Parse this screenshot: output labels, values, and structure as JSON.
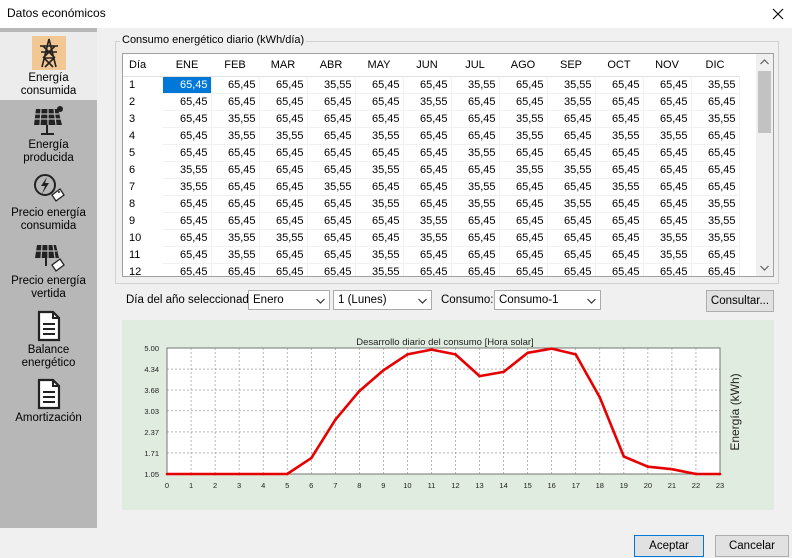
{
  "window": {
    "title": "Datos económicos"
  },
  "sidebar": {
    "items": [
      {
        "label_line1": "Energía",
        "label_line2": "consumida",
        "icon": "power-tower-icon",
        "selected": true
      },
      {
        "label_line1": "Energía",
        "label_line2": "producida",
        "icon": "solar-panel-icon"
      },
      {
        "label_line1": "Precio energía",
        "label_line2": "consumida",
        "icon": "lightning-price-icon"
      },
      {
        "label_line1": "Precio energía",
        "label_line2": "vertida",
        "icon": "solar-price-icon"
      },
      {
        "label_line1": "Balance",
        "label_line2": "energético",
        "icon": "document-icon"
      },
      {
        "label_line1": "Amortización",
        "label_line2": "",
        "icon": "document-icon"
      }
    ]
  },
  "consumo_group": {
    "title": "Consumo energético diario (kWh/día)"
  },
  "table": {
    "columns": [
      "Día",
      "ENE",
      "FEB",
      "MAR",
      "ABR",
      "MAY",
      "JUN",
      "JUL",
      "AGO",
      "SEP",
      "OCT",
      "NOV",
      "DIC"
    ],
    "rows": [
      [
        "1",
        "65,45",
        "65,45",
        "65,45",
        "35,55",
        "65,45",
        "65,45",
        "35,55",
        "65,45",
        "35,55",
        "65,45",
        "65,45",
        "35,55"
      ],
      [
        "2",
        "65,45",
        "65,45",
        "65,45",
        "65,45",
        "65,45",
        "35,55",
        "65,45",
        "65,45",
        "35,55",
        "65,45",
        "65,45",
        "65,45"
      ],
      [
        "3",
        "65,45",
        "35,55",
        "65,45",
        "65,45",
        "65,45",
        "65,45",
        "65,45",
        "35,55",
        "65,45",
        "65,45",
        "65,45",
        "35,55"
      ],
      [
        "4",
        "65,45",
        "35,55",
        "35,55",
        "65,45",
        "35,55",
        "65,45",
        "65,45",
        "35,55",
        "65,45",
        "35,55",
        "35,55",
        "65,45"
      ],
      [
        "5",
        "65,45",
        "65,45",
        "65,45",
        "65,45",
        "65,45",
        "65,45",
        "35,55",
        "65,45",
        "65,45",
        "65,45",
        "65,45",
        "65,45"
      ],
      [
        "6",
        "35,55",
        "65,45",
        "65,45",
        "65,45",
        "35,55",
        "65,45",
        "65,45",
        "35,55",
        "35,55",
        "65,45",
        "65,45",
        "65,45"
      ],
      [
        "7",
        "35,55",
        "65,45",
        "65,45",
        "35,55",
        "65,45",
        "65,45",
        "35,55",
        "65,45",
        "65,45",
        "35,55",
        "65,45",
        "65,45"
      ],
      [
        "8",
        "65,45",
        "65,45",
        "65,45",
        "65,45",
        "35,55",
        "65,45",
        "35,55",
        "65,45",
        "35,55",
        "65,45",
        "65,45",
        "35,55"
      ],
      [
        "9",
        "65,45",
        "65,45",
        "65,45",
        "65,45",
        "65,45",
        "35,55",
        "65,45",
        "65,45",
        "65,45",
        "65,45",
        "65,45",
        "35,55"
      ],
      [
        "10",
        "65,45",
        "35,55",
        "35,55",
        "65,45",
        "65,45",
        "35,55",
        "65,45",
        "65,45",
        "65,45",
        "65,45",
        "35,55",
        "35,55"
      ],
      [
        "11",
        "65,45",
        "35,55",
        "65,45",
        "65,45",
        "35,55",
        "65,45",
        "65,45",
        "65,45",
        "65,45",
        "65,45",
        "35,55",
        "65,45"
      ],
      [
        "12",
        "65,45",
        "65,45",
        "65,45",
        "65,45",
        "35,55",
        "65,45",
        "65,45",
        "65,45",
        "65,45",
        "65,45",
        "65,45",
        "65,45"
      ]
    ],
    "selected_cell": {
      "row": 0,
      "col": 1
    }
  },
  "controls": {
    "day_label": "Día del año seleccionado:",
    "month_value": "Enero",
    "day_value": "1 (Lunes)",
    "consumo_label": "Consumo:",
    "consumo_value": "Consumo-1",
    "consultar_label": "Consultar..."
  },
  "chart_data": {
    "type": "line",
    "title": "Desarrollo diario del consumo [Hora solar]",
    "xlabel": "",
    "ylabel": "Energía (kWh)",
    "x": [
      0,
      1,
      2,
      3,
      4,
      5,
      6,
      7,
      8,
      9,
      10,
      11,
      12,
      13,
      14,
      15,
      16,
      17,
      18,
      19,
      20,
      21,
      22,
      23
    ],
    "series": [
      {
        "values": [
          1.05,
          1.05,
          1.05,
          1.05,
          1.05,
          1.05,
          1.55,
          2.75,
          3.65,
          4.3,
          4.8,
          4.95,
          4.8,
          4.12,
          4.25,
          4.85,
          4.98,
          4.8,
          3.45,
          1.6,
          1.28,
          1.2,
          1.05,
          1.05
        ],
        "color": "#e60000"
      }
    ],
    "y_ticks": [
      "1.05",
      "1.71",
      "2.37",
      "3.03",
      "3.68",
      "4.34",
      "5.00"
    ],
    "ylim": [
      1.05,
      5.0
    ],
    "xlim": [
      0,
      23
    ],
    "grid": true
  },
  "buttons": {
    "aceptar": "Aceptar",
    "cancelar": "Cancelar"
  }
}
